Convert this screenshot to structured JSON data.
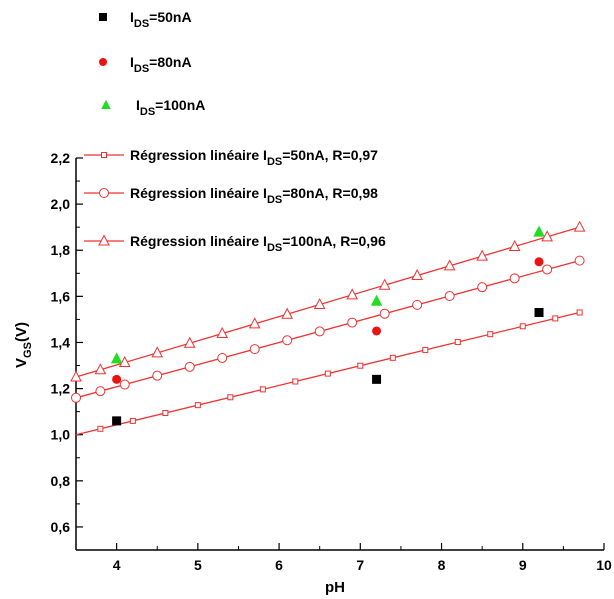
{
  "chart_data": {
    "type": "scatter",
    "xlabel": "pH",
    "ylabel": {
      "main": "V",
      "sub": "GS",
      "suffix": "(V)"
    },
    "xlim": [
      3.5,
      10
    ],
    "ylim": [
      0.5,
      2.2
    ],
    "x_ticks": [
      4,
      5,
      6,
      7,
      8,
      9,
      10
    ],
    "y_ticks": [
      0.6,
      0.8,
      1.0,
      1.2,
      1.4,
      1.6,
      1.8,
      2.0,
      2.2
    ],
    "x_tick_labels": [
      "4",
      "5",
      "6",
      "7",
      "8",
      "9",
      "10"
    ],
    "y_tick_labels": [
      "0,6",
      "0,8",
      "1,0",
      "1,2",
      "1,4",
      "1,6",
      "1,8",
      "2,0",
      "2,2"
    ],
    "grid": false,
    "legend_position": "top-left",
    "series": [
      {
        "kind": "measured",
        "marker": "square",
        "color": "#000000",
        "legend": {
          "main": "I",
          "sub": "DS",
          "suffix": "=50nA"
        },
        "points": [
          [
            4.0,
            1.06
          ],
          [
            7.2,
            1.24
          ],
          [
            9.2,
            1.53
          ]
        ]
      },
      {
        "kind": "measured",
        "marker": "circle",
        "color": "#ee1111",
        "legend": {
          "main": "I",
          "sub": "DS",
          "suffix": "=80nA"
        },
        "points": [
          [
            4.0,
            1.24
          ],
          [
            7.2,
            1.45
          ],
          [
            9.2,
            1.75
          ]
        ]
      },
      {
        "kind": "measured",
        "marker": "triangle",
        "color": "#22dd22",
        "legend": {
          "main": "I",
          "sub": "DS",
          "suffix": "=100nA"
        },
        "points": [
          [
            4.0,
            1.33
          ],
          [
            7.2,
            1.58
          ],
          [
            9.2,
            1.88
          ]
        ]
      },
      {
        "kind": "fit",
        "marker": "square-open",
        "color": "#ee3333",
        "legend": {
          "main": "Régression linéaire  I",
          "sub": "DS",
          "suffix": "=50nA, R=0,97"
        },
        "line": {
          "x_start": 3.5,
          "x_end": 9.7,
          "y_start": 1.0,
          "y_end": 1.53
        },
        "marker_x": [
          3.8,
          4.2,
          4.6,
          5.0,
          5.4,
          5.8,
          6.2,
          6.6,
          7.0,
          7.4,
          7.8,
          8.2,
          8.6,
          9.0,
          9.4,
          9.7
        ]
      },
      {
        "kind": "fit",
        "marker": "circle-open",
        "color": "#ee3333",
        "legend": {
          "main": "Régression linéaire  I",
          "sub": "DS",
          "suffix": "=80nA, R=0,98"
        },
        "line": {
          "x_start": 3.5,
          "x_end": 9.7,
          "y_start": 1.16,
          "y_end": 1.755
        },
        "marker_x": [
          3.5,
          3.8,
          4.1,
          4.5,
          4.9,
          5.3,
          5.7,
          6.1,
          6.5,
          6.9,
          7.3,
          7.7,
          8.1,
          8.5,
          8.9,
          9.3,
          9.7
        ]
      },
      {
        "kind": "fit",
        "marker": "triangle-open",
        "color": "#ee3333",
        "legend": {
          "main": "Régression linéaire  I",
          "sub": "DS",
          "suffix": "=100nA, R=0,96"
        },
        "line": {
          "x_start": 3.5,
          "x_end": 9.7,
          "y_start": 1.25,
          "y_end": 1.9
        },
        "marker_x": [
          3.5,
          3.8,
          4.1,
          4.5,
          4.9,
          5.3,
          5.7,
          6.1,
          6.5,
          6.9,
          7.3,
          7.7,
          8.1,
          8.5,
          8.9,
          9.3,
          9.7
        ]
      }
    ]
  }
}
